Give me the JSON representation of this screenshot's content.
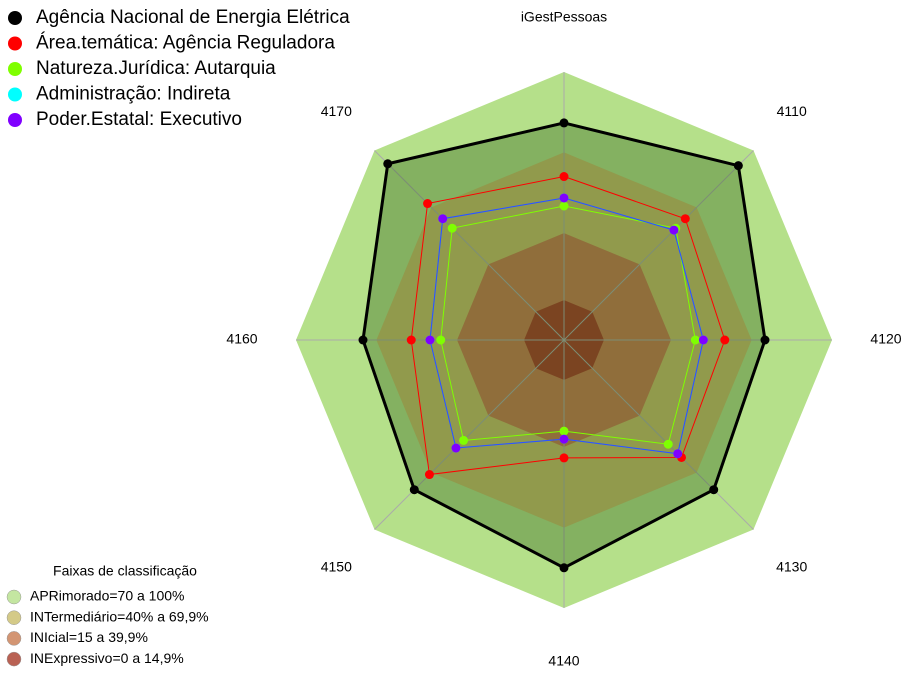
{
  "chart_data": {
    "type": "radar",
    "categories": [
      "iGestPessoas",
      "4110",
      "4120",
      "4130",
      "4140",
      "4150",
      "4160",
      "4170"
    ],
    "rlim": [
      0,
      100
    ],
    "series": [
      {
        "name": "Agência Nacional de Energia Elétrica",
        "color": "#000000",
        "values": [
          81,
          92,
          75,
          79,
          85,
          79,
          75,
          93
        ]
      },
      {
        "name": "Área.temática: Agência Reguladora",
        "color": "#ff0000",
        "values": [
          61,
          64,
          60,
          62,
          44,
          71,
          57,
          72
        ]
      },
      {
        "name": "Natureza.Jurídica: Autarquia",
        "color": "#7fff00",
        "values": [
          50,
          59,
          49,
          55,
          34,
          53,
          46,
          59
        ]
      },
      {
        "name": "Administração: Indireta",
        "color": "#00ffff",
        "values": [
          53,
          58,
          52,
          60,
          37,
          57,
          50,
          64
        ]
      },
      {
        "name": "Poder.Estatal: Executivo",
        "color": "#8000ff",
        "values": [
          53,
          58,
          52,
          60,
          37,
          57,
          50,
          64
        ]
      }
    ],
    "bands_title": "Faixas de classificação",
    "bands": [
      {
        "label": "APRimorado=70 a 100%",
        "color": "#b5e08a",
        "max": 100
      },
      {
        "label": "INTermediário=40% a 69,9%",
        "color": "#c9bd6a",
        "max": 70
      },
      {
        "label": "INIcial=15 a 39,9%",
        "color": "#c87a50",
        "max": 39.9
      },
      {
        "label": "INExpressivo=0 a 14,9%",
        "color": "#a83a28",
        "max": 14.9
      }
    ]
  }
}
